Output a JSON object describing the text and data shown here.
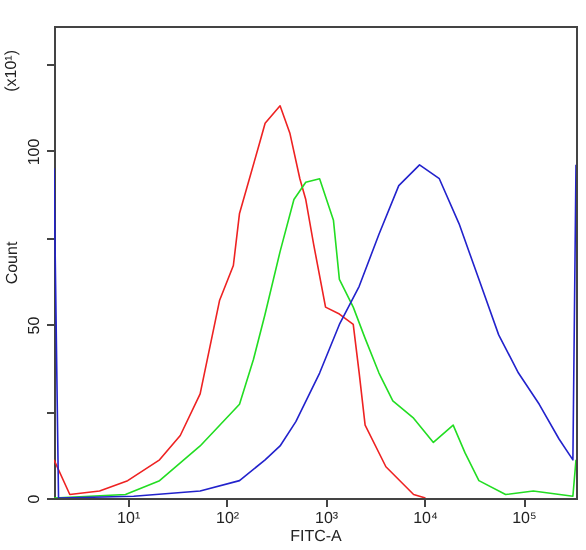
{
  "chart_data": {
    "type": "line",
    "xlabel": "FITC-A",
    "ylabel": "Count",
    "annotations": [
      "(x10¹)"
    ],
    "log": "x",
    "grid": false,
    "xlim": [
      1.8,
      340000
    ],
    "ylim": [
      0,
      136
    ],
    "xticks": [
      {
        "value": 10,
        "label": "10¹"
      },
      {
        "value": 100,
        "label": "10²"
      },
      {
        "value": 1000,
        "label": "10³"
      },
      {
        "value": 10000,
        "label": "10⁴"
      },
      {
        "value": 100000,
        "label": "10⁵"
      }
    ],
    "yticks": [
      0,
      {
        "value": 25,
        "label": null
      },
      50,
      {
        "value": 75,
        "label": null
      },
      100,
      {
        "value": 125,
        "label": null
      }
    ],
    "series": [
      {
        "color": "#ee2222",
        "x": [
          1.8,
          2.6,
          5.2,
          10,
          21,
          34,
          54,
          85,
          117,
          135,
          214,
          245,
          347,
          437,
          550,
          631,
          759,
          1000,
          1380,
          1905,
          2188,
          2512,
          4074,
          7762,
          10233
        ],
        "values": [
          11,
          1,
          2,
          5,
          11,
          18,
          30,
          57,
          67,
          82,
          102,
          108,
          113,
          105,
          92,
          86,
          73,
          55,
          53,
          50,
          36,
          21,
          9,
          1,
          0
        ]
      },
      {
        "color": "#22dd22",
        "x": [
          1.8,
          9.5,
          21,
          54,
          135,
          187,
          245,
          347,
          479,
          631,
          871,
          1202,
          1380,
          1905,
          2512,
          3467,
          4786,
          7762,
          12303,
          19498,
          25704,
          35481,
          66069,
          125893,
          316228,
          340000
        ],
        "values": [
          0,
          1,
          5,
          15,
          27,
          40,
          53,
          71,
          86,
          91,
          92,
          80,
          63,
          55,
          46,
          36,
          28,
          23,
          16,
          21,
          13,
          5,
          1,
          2,
          0.5,
          11
        ]
      },
      {
        "color": "#2222cc",
        "x": [
          1.8,
          2.0,
          11.5,
          54,
          135,
          245,
          347,
          501,
          871,
          1380,
          2188,
          3467,
          5495,
          8913,
          14125,
          22387,
          35481,
          56234,
          89125,
          144544,
          229087,
          316228,
          340000
        ],
        "values": [
          95,
          0,
          0.5,
          2,
          5,
          11,
          15,
          22,
          36,
          50,
          61,
          76,
          90,
          96,
          92,
          79,
          63,
          47,
          36,
          27,
          17,
          11,
          96
        ]
      }
    ]
  }
}
